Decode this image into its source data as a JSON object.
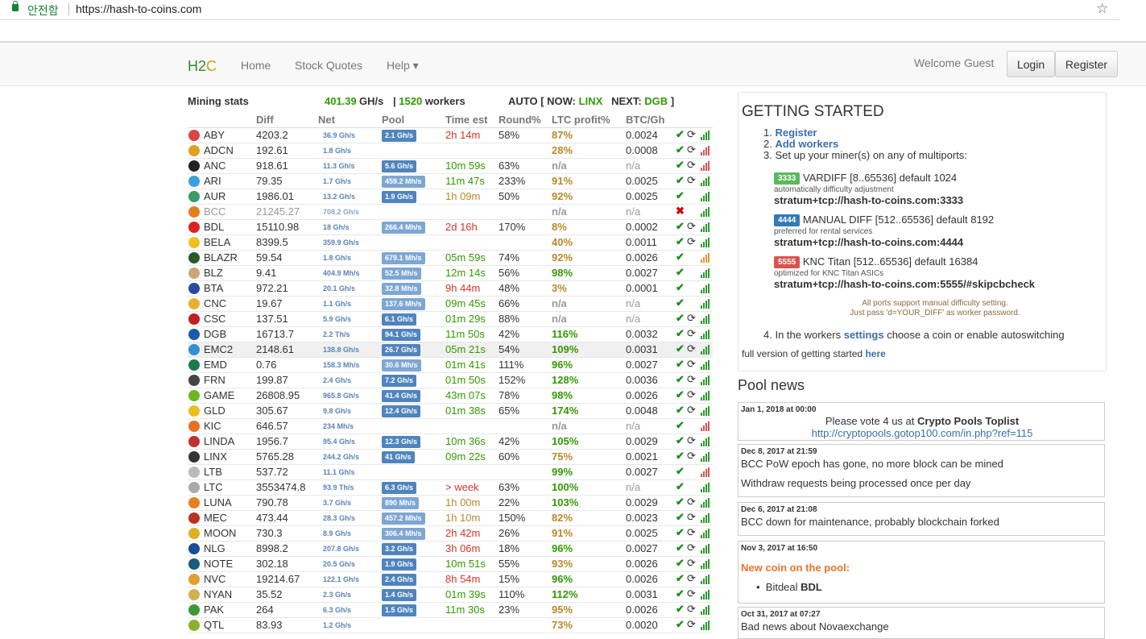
{
  "browser": {
    "secure_label": "안전함",
    "url": "https://hash-to-coins.com"
  },
  "nav": {
    "brand_h": "H2",
    "brand_c": "C",
    "home": "Home",
    "stock": "Stock Quotes",
    "help": "Help ▾",
    "welcome": "Welcome Guest",
    "login": "Login",
    "register": "Register"
  },
  "stats": {
    "title": "Mining stats",
    "hashrate": "401.39",
    "hash_unit": "GH/s",
    "workers_sep": "|",
    "workers_count": "1520",
    "workers_label": "workers",
    "auto_prefix": "AUTO [ NOW:",
    "now": "LINX",
    "next_label": "NEXT:",
    "next": "DGB",
    "auto_suffix": "]"
  },
  "columns": [
    "Diff",
    "Net",
    "Pool",
    "Time est",
    "Round%",
    "LTC profit%",
    "BTC/Gh"
  ],
  "rows": [
    {
      "coin": "ABY",
      "diff": "4203.2",
      "net": "36.9 Gh/s",
      "pool": "2.1 Gh/s",
      "time": "2h 14m",
      "tc": "r",
      "round": "58%",
      "ltc": "87%",
      "lc": "y",
      "btc": "0.0024",
      "sync": true,
      "ok": "c",
      "bars": "g",
      "icon": "#d44"
    },
    {
      "coin": "ADCN",
      "diff": "192.61",
      "net": "1.8 Gh/s",
      "pool": "",
      "time": "",
      "tc": "",
      "round": "",
      "ltc": "28%",
      "lc": "y",
      "btc": "0.0008",
      "sync": true,
      "ok": "c",
      "bars": "r",
      "icon": "#e0a020"
    },
    {
      "coin": "ANC",
      "diff": "918.61",
      "net": "11.3 Gh/s",
      "pool": "5.6 Gh/s",
      "time": "10m 59s",
      "tc": "g",
      "round": "63%",
      "ltc": "n/a",
      "lc": "n",
      "btc": "n/a",
      "sync": true,
      "ok": "c",
      "bars": "r",
      "icon": "#222"
    },
    {
      "coin": "ARI",
      "diff": "79.35",
      "net": "1.7 Gh/s",
      "pool": "459.2 Mh/s",
      "time": "11m 47s",
      "tc": "g",
      "round": "233%",
      "ltc": "91%",
      "lc": "y",
      "btc": "0.0025",
      "sync": true,
      "ok": "c",
      "bars": "g",
      "icon": "#3aa0e0"
    },
    {
      "coin": "AUR",
      "diff": "1986.01",
      "net": "13.2 Gh/s",
      "pool": "1.9 Gh/s",
      "time": "1h 09m",
      "tc": "y",
      "round": "50%",
      "ltc": "92%",
      "lc": "y",
      "btc": "0.0025",
      "sync": false,
      "ok": "c",
      "bars": "g",
      "icon": "#3a9a6a"
    },
    {
      "coin": "BCC",
      "diff": "21245.27",
      "net": "708.2 Gh/s",
      "pool": "",
      "time": "",
      "tc": "",
      "round": "",
      "ltc": "n/a",
      "lc": "n",
      "btc": "n/a",
      "sync": false,
      "ok": "x",
      "bars": "g",
      "icon": "#e08020",
      "dim": true
    },
    {
      "coin": "BDL",
      "diff": "15110.98",
      "net": "18 Gh/s",
      "pool": "266.4 Mh/s",
      "time": "2d 16h",
      "tc": "r",
      "round": "170%",
      "ltc": "8%",
      "lc": "y",
      "btc": "0.0002",
      "sync": true,
      "ok": "c",
      "bars": "g",
      "icon": "#d22"
    },
    {
      "coin": "BELA",
      "diff": "8399.5",
      "net": "359.9 Gh/s",
      "pool": "",
      "time": "",
      "tc": "",
      "round": "",
      "ltc": "40%",
      "lc": "y",
      "btc": "0.0011",
      "sync": true,
      "ok": "c",
      "bars": "g",
      "icon": "#f0c020"
    },
    {
      "coin": "BLAZR",
      "diff": "59.54",
      "net": "1.8 Gh/s",
      "pool": "679.1 Mh/s",
      "time": "05m 59s",
      "tc": "g",
      "round": "74%",
      "ltc": "92%",
      "lc": "y",
      "btc": "0.0026",
      "sync": false,
      "ok": "c",
      "bars": "y",
      "icon": "#2a5a2a"
    },
    {
      "coin": "BLZ",
      "diff": "9.41",
      "net": "404.9 Mh/s",
      "pool": "52.5 Mh/s",
      "time": "12m 14s",
      "tc": "g",
      "round": "56%",
      "ltc": "98%",
      "lc": "g",
      "btc": "0.0027",
      "sync": false,
      "ok": "c",
      "bars": "g",
      "icon": "#c8a878"
    },
    {
      "coin": "BTA",
      "diff": "972.21",
      "net": "20.1 Gh/s",
      "pool": "32.8 Mh/s",
      "time": "9h 44m",
      "tc": "r",
      "round": "48%",
      "ltc": "3%",
      "lc": "y",
      "btc": "0.0001",
      "sync": false,
      "ok": "c",
      "bars": "g",
      "icon": "#2a4aa0"
    },
    {
      "coin": "CNC",
      "diff": "19.67",
      "net": "1.1 Gh/s",
      "pool": "137.6 Mh/s",
      "time": "09m 45s",
      "tc": "g",
      "round": "66%",
      "ltc": "n/a",
      "lc": "n",
      "btc": "n/a",
      "sync": false,
      "ok": "c",
      "bars": "g",
      "icon": "#e8b030"
    },
    {
      "coin": "CSC",
      "diff": "137.51",
      "net": "5.9 Gh/s",
      "pool": "6.1 Gh/s",
      "time": "01m 29s",
      "tc": "g",
      "round": "88%",
      "ltc": "n/a",
      "lc": "n",
      "btc": "n/a",
      "sync": true,
      "ok": "c",
      "bars": "g",
      "icon": "#c02020"
    },
    {
      "coin": "DGB",
      "diff": "16713.7",
      "net": "2.2 Th/s",
      "pool": "94.1 Gh/s",
      "time": "11m 50s",
      "tc": "g",
      "round": "42%",
      "ltc": "116%",
      "lc": "g",
      "btc": "0.0032",
      "sync": true,
      "ok": "c",
      "bars": "g",
      "icon": "#1a5ab0"
    },
    {
      "coin": "EMC2",
      "diff": "2148.61",
      "net": "138.8 Gh/s",
      "pool": "26.7 Gh/s",
      "time": "05m 21s",
      "tc": "g",
      "round": "54%",
      "ltc": "109%",
      "lc": "g",
      "btc": "0.0031",
      "sync": true,
      "ok": "c",
      "bars": "g",
      "icon": "#3090d0",
      "hl": true
    },
    {
      "coin": "EMD",
      "diff": "0.76",
      "net": "158.3 Mh/s",
      "pool": "30.6 Mh/s",
      "time": "01m 41s",
      "tc": "g",
      "round": "111%",
      "ltc": "96%",
      "lc": "g",
      "btc": "0.0027",
      "sync": true,
      "ok": "c",
      "bars": "g",
      "icon": "#1a7a4a"
    },
    {
      "coin": "FRN",
      "diff": "199.87",
      "net": "2.4 Gh/s",
      "pool": "7.2 Gh/s",
      "time": "01m 50s",
      "tc": "g",
      "round": "152%",
      "ltc": "128%",
      "lc": "g",
      "btc": "0.0036",
      "sync": true,
      "ok": "c",
      "bars": "g",
      "icon": "#444"
    },
    {
      "coin": "GAME",
      "diff": "26808.95",
      "net": "965.8 Gh/s",
      "pool": "41.4 Gh/s",
      "time": "43m 07s",
      "tc": "g",
      "round": "78%",
      "ltc": "98%",
      "lc": "g",
      "btc": "0.0026",
      "sync": true,
      "ok": "c",
      "bars": "g",
      "icon": "#6ab820"
    },
    {
      "coin": "GLD",
      "diff": "305.67",
      "net": "9.8 Gh/s",
      "pool": "12.4 Gh/s",
      "time": "01m 38s",
      "tc": "g",
      "round": "65%",
      "ltc": "174%",
      "lc": "g",
      "btc": "0.0048",
      "sync": true,
      "ok": "c",
      "bars": "g",
      "icon": "#e8c020"
    },
    {
      "coin": "KIC",
      "diff": "646.57",
      "net": "234 Mh/s",
      "pool": "",
      "time": "",
      "tc": "",
      "round": "",
      "ltc": "n/a",
      "lc": "n",
      "btc": "n/a",
      "sync": false,
      "ok": "c",
      "bars": "r",
      "icon": "#e87020"
    },
    {
      "coin": "LINDA",
      "diff": "1956.7",
      "net": "95.4 Gh/s",
      "pool": "12.3 Gh/s",
      "time": "10m 36s",
      "tc": "g",
      "round": "42%",
      "ltc": "105%",
      "lc": "g",
      "btc": "0.0029",
      "sync": true,
      "ok": "c",
      "bars": "g",
      "icon": "#c03030"
    },
    {
      "coin": "LINX",
      "diff": "5765.28",
      "net": "244.2 Gh/s",
      "pool": "41 Gh/s",
      "time": "09m 22s",
      "tc": "g",
      "round": "60%",
      "ltc": "75%",
      "lc": "y",
      "btc": "0.0021",
      "sync": true,
      "ok": "c",
      "bars": "g",
      "icon": "#333"
    },
    {
      "coin": "LTB",
      "diff": "537.72",
      "net": "11.1 Gh/s",
      "pool": "",
      "time": "",
      "tc": "",
      "round": "",
      "ltc": "99%",
      "lc": "g",
      "btc": "0.0027",
      "sync": false,
      "ok": "c",
      "bars": "r",
      "icon": "#bbb"
    },
    {
      "coin": "LTC",
      "diff": "3553474.8",
      "net": "93.9 Th/s",
      "pool": "6.3 Gh/s",
      "time": "> week",
      "tc": "r",
      "round": "63%",
      "ltc": "100%",
      "lc": "g",
      "btc": "n/a",
      "sync": false,
      "ok": "c",
      "bars": "g",
      "icon": "#aaa"
    },
    {
      "coin": "LUNA",
      "diff": "790.78",
      "net": "3.7 Gh/s",
      "pool": "890 Mh/s",
      "time": "1h 00m",
      "tc": "y",
      "round": "22%",
      "ltc": "103%",
      "lc": "g",
      "btc": "0.0029",
      "sync": true,
      "ok": "c",
      "bars": "g",
      "icon": "#e88020"
    },
    {
      "coin": "MEC",
      "diff": "473.44",
      "net": "28.3 Gh/s",
      "pool": "457.2 Mh/s",
      "time": "1h 10m",
      "tc": "y",
      "round": "150%",
      "ltc": "82%",
      "lc": "y",
      "btc": "0.0023",
      "sync": true,
      "ok": "c",
      "bars": "g",
      "icon": "#c03020"
    },
    {
      "coin": "MOON",
      "diff": "730.3",
      "net": "8.9 Gh/s",
      "pool": "306.4 Mh/s",
      "time": "2h 42m",
      "tc": "r",
      "round": "26%",
      "ltc": "91%",
      "lc": "y",
      "btc": "0.0025",
      "sync": true,
      "ok": "c",
      "bars": "g",
      "icon": "#e0b020"
    },
    {
      "coin": "NLG",
      "diff": "8998.2",
      "net": "207.8 Gh/s",
      "pool": "3.2 Gh/s",
      "time": "3h 06m",
      "tc": "r",
      "round": "18%",
      "ltc": "96%",
      "lc": "g",
      "btc": "0.0027",
      "sync": true,
      "ok": "c",
      "bars": "g",
      "icon": "#1a4a9a"
    },
    {
      "coin": "NOTE",
      "diff": "302.18",
      "net": "20.5 Gh/s",
      "pool": "1.9 Gh/s",
      "time": "10m 51s",
      "tc": "g",
      "round": "55%",
      "ltc": "93%",
      "lc": "y",
      "btc": "0.0026",
      "sync": true,
      "ok": "c",
      "bars": "g",
      "icon": "#1a5a7a"
    },
    {
      "coin": "NVC",
      "diff": "19214.67",
      "net": "122.1 Gh/s",
      "pool": "2.4 Gh/s",
      "time": "8h 54m",
      "tc": "r",
      "round": "15%",
      "ltc": "96%",
      "lc": "g",
      "btc": "0.0026",
      "sync": true,
      "ok": "c",
      "bars": "g",
      "icon": "#e0a030"
    },
    {
      "coin": "NYAN",
      "diff": "35.52",
      "net": "2.3 Gh/s",
      "pool": "1.4 Gh/s",
      "time": "01m 39s",
      "tc": "g",
      "round": "110%",
      "ltc": "112%",
      "lc": "g",
      "btc": "0.0031",
      "sync": true,
      "ok": "c",
      "bars": "g",
      "icon": "#d0b050"
    },
    {
      "coin": "PAK",
      "diff": "264",
      "net": "6.3 Gh/s",
      "pool": "1.5 Gh/s",
      "time": "11m 30s",
      "tc": "g",
      "round": "23%",
      "ltc": "95%",
      "lc": "y",
      "btc": "0.0026",
      "sync": true,
      "ok": "c",
      "bars": "g",
      "icon": "#3a9a3a"
    },
    {
      "coin": "QTL",
      "diff": "83.93",
      "net": "1.2 Gh/s",
      "pool": "",
      "time": "",
      "tc": "",
      "round": "",
      "ltc": "73%",
      "lc": "y",
      "btc": "0.0020",
      "sync": true,
      "ok": "c",
      "bars": "g",
      "icon": "#8ab030"
    }
  ],
  "getting_started": {
    "title": "GETTING STARTED",
    "s1_num": "1.",
    "s1": "Register",
    "s2_num": "2.",
    "s2": "Add workers",
    "s3": "3. Set up your miner(s) on any of multiports:",
    "p1_badge": "3333",
    "p1_title": "VARDIFF [8..65536] default 1024",
    "p1_sub": "automatically difficulty adjustment",
    "p1_stratum": "stratum+tcp://hash-to-coins.com:3333",
    "p2_badge": "4444",
    "p2_title": "MANUAL DIFF [512..65536] default 8192",
    "p2_sub": "preferred for rental services",
    "p2_stratum": "stratum+tcp://hash-to-coins.com:4444",
    "p3_badge": "5555",
    "p3_title": "KNC Titan [512..65536] default 16384",
    "p3_sub": "optimized for KNC Titan ASICs",
    "p3_stratum": "stratum+tcp://hash-to-coins.com:5555/#skipcbcheck",
    "note1": "All ports support manual difficulty setting.",
    "note2": "Just pass 'd=YOUR_DIFF' as worker password.",
    "s4_a": "4. In the workers",
    "s4_link": "settings",
    "s4_b": "choose a coin or enable autoswitching",
    "full_a": "full version of getting started",
    "full_link": "here"
  },
  "news": {
    "title": "Pool news",
    "n1_date": "Jan 1, 2018 at 00:00",
    "n1_a": "Please vote 4 us at",
    "n1_b": "Crypto Pools Toplist",
    "n1_link": "http://cryptopools.gotop100.com/in.php?ref=115",
    "n2_date": "Dec 8, 2017 at 21:59",
    "n2_l1": "BCC PoW epoch has gone, no more block can be mined",
    "n2_l2": "Withdraw requests being processed once per day",
    "n3_date": "Dec 6, 2017 at 21:08",
    "n3_l1": "BCC down for maintenance, probably blockchain forked",
    "n4_date": "Nov 3, 2017 at 16:50",
    "n4_head": "New coin on the pool:",
    "n4_item": "Bitdeal",
    "n4_coin": "BDL",
    "n5_date": "Oct 31, 2017 at 07:27",
    "n5_l1": "Bad news about Novaexchange"
  }
}
